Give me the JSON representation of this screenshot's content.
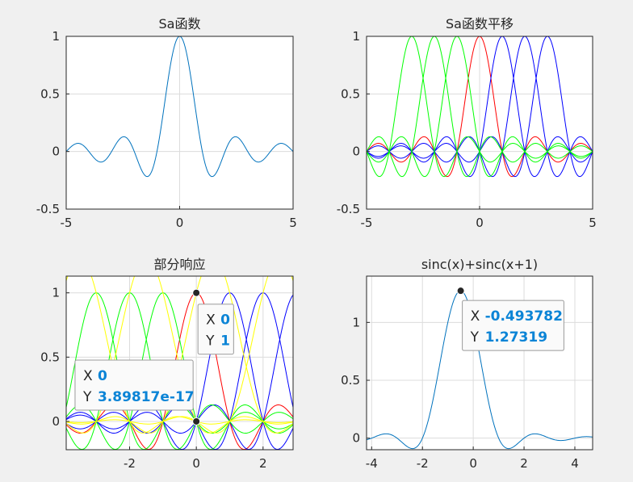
{
  "colors": {
    "sinc": "#0072BD",
    "red": "#ff0000",
    "green": "#00ff00",
    "blue": "#0000ff",
    "yellow": "#ffff00"
  },
  "chart_data": [
    {
      "type": "line",
      "title": "Sa函数",
      "xlim": [
        -5,
        5
      ],
      "ylim": [
        -0.5,
        1
      ],
      "xticks": [
        -5,
        0,
        5
      ],
      "yticks": [
        -0.5,
        0,
        0.5,
        1
      ],
      "xtick_labels": [
        "-5",
        "0",
        "5"
      ],
      "ytick_labels": [
        "-0.5",
        "0",
        "0.5",
        "1"
      ],
      "grid": true,
      "series": [
        {
          "function": "sinc(x)",
          "x_range": [
            -5,
            5
          ],
          "color": "#0072BD"
        }
      ]
    },
    {
      "type": "line",
      "title": "Sa函数平移",
      "xlim": [
        -5,
        5
      ],
      "ylim": [
        -0.5,
        1
      ],
      "xticks": [
        -5,
        0,
        5
      ],
      "yticks": [
        -0.5,
        0,
        0.5,
        1
      ],
      "xtick_labels": [
        "-5",
        "0",
        "5"
      ],
      "ytick_labels": [
        "-0.5",
        "0",
        "0.5",
        "1"
      ],
      "grid": true,
      "series": [
        {
          "function": "sinc(x)",
          "x_range": [
            -5,
            5
          ],
          "color": "#ff0000"
        },
        {
          "function": "sinc(x-1)",
          "x_range": [
            -5,
            5
          ],
          "color": "#0000ff"
        },
        {
          "function": "sinc(x-2)",
          "x_range": [
            -5,
            5
          ],
          "color": "#0000ff"
        },
        {
          "function": "sinc(x-3)",
          "x_range": [
            -5,
            5
          ],
          "color": "#0000ff"
        },
        {
          "function": "sinc(x+1)",
          "x_range": [
            -5,
            5
          ],
          "color": "#00ff00"
        },
        {
          "function": "sinc(x+2)",
          "x_range": [
            -5,
            5
          ],
          "color": "#00ff00"
        },
        {
          "function": "sinc(x+3)",
          "x_range": [
            -5,
            5
          ],
          "color": "#00ff00"
        }
      ]
    },
    {
      "type": "line",
      "title": "部分响应",
      "xlim": [
        -3.9,
        2.9
      ],
      "ylim": [
        -0.22,
        1.13
      ],
      "xticks": [
        -2,
        0,
        2
      ],
      "yticks": [
        0,
        0.5,
        1
      ],
      "xtick_labels": [
        "-2",
        "0",
        "2"
      ],
      "ytick_labels": [
        "0",
        "0.5",
        "1"
      ],
      "grid": true,
      "series": [
        {
          "function": "sinc(x)",
          "x_range": [
            -5,
            5
          ],
          "color": "#ff0000"
        },
        {
          "function": "sinc(x-1)",
          "x_range": [
            -5,
            5
          ],
          "color": "#0000ff"
        },
        {
          "function": "sinc(x-2)",
          "x_range": [
            -5,
            5
          ],
          "color": "#0000ff"
        },
        {
          "function": "sinc(x-3)",
          "x_range": [
            -5,
            5
          ],
          "color": "#0000ff"
        },
        {
          "function": "sinc(x+1)",
          "x_range": [
            -5,
            5
          ],
          "color": "#00ff00"
        },
        {
          "function": "sinc(x+2)",
          "x_range": [
            -5,
            5
          ],
          "color": "#00ff00"
        },
        {
          "function": "sinc(x+3)",
          "x_range": [
            -5,
            5
          ],
          "color": "#00ff00"
        },
        {
          "function": "sinc(x)+sinc(x-1)",
          "x_range": [
            -5,
            5
          ],
          "color": "#ffff00"
        },
        {
          "function": "sinc(x+1)+sinc(x+2)",
          "x_range": [
            -5,
            5
          ],
          "color": "#ffff00"
        },
        {
          "function": "sinc(x+3)+sinc(x+4)",
          "x_range": [
            -5,
            5
          ],
          "color": "#ffff00"
        },
        {
          "function": "sinc(x-2)+sinc(x-3)",
          "x_range": [
            -5,
            5
          ],
          "color": "#ffff00"
        }
      ],
      "datatips": [
        {
          "x": 0,
          "y": 1,
          "x_label": "X",
          "y_label": "Y",
          "x_text": "0",
          "y_text": "1"
        },
        {
          "x": 0,
          "y": 0,
          "x_label": "X",
          "y_label": "Y",
          "x_text": "0",
          "y_text": "3.89817e-17"
        }
      ]
    },
    {
      "type": "line",
      "title": "sinc(x)+sinc(x+1)",
      "xlim": [
        -4.2,
        4.7
      ],
      "ylim": [
        -0.1,
        1.4
      ],
      "xticks": [
        -4,
        -2,
        0,
        2,
        4
      ],
      "yticks": [
        0,
        0.5,
        1
      ],
      "xtick_labels": [
        "-4",
        "-2",
        "0",
        "2",
        "4"
      ],
      "ytick_labels": [
        "0",
        "0.5",
        "1"
      ],
      "grid": true,
      "series": [
        {
          "function": "sinc(x)+sinc(x+1)",
          "x_range": [
            -5,
            5
          ],
          "color": "#0072BD"
        }
      ],
      "datatips": [
        {
          "x": -0.493782,
          "y": 1.27319,
          "x_label": "X",
          "y_label": "Y",
          "x_text": "-0.493782",
          "y_text": "1.27319"
        }
      ]
    }
  ]
}
